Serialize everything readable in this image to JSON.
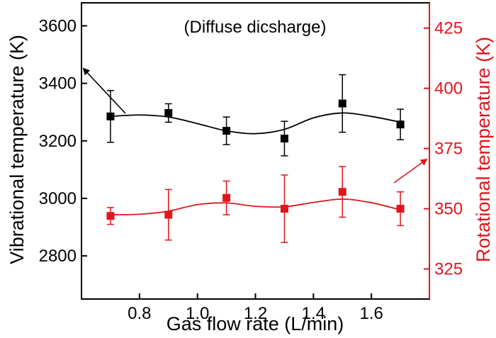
{
  "chart_data": {
    "type": "scatter",
    "annotation": "(Diffuse dicsharge)",
    "xlabel": "Gas flow rate (L/min)",
    "ylabel_left": "Vibrational temperature (K)",
    "ylabel_right": "Rotational temperature (K)",
    "xlim": [
      0.6,
      1.8
    ],
    "ylim_left": [
      2650,
      3680
    ],
    "ylim_right": [
      312.5,
      435.5
    ],
    "xticks": [
      "0.8",
      "1.0",
      "1.2",
      "1.4",
      "1.6"
    ],
    "yticks_left": [
      "2800",
      "3000",
      "3200",
      "3400",
      "3600"
    ],
    "yticks_right": [
      "325",
      "350",
      "375",
      "400",
      "425"
    ],
    "grid": false,
    "colors": {
      "vibrational": "#000000",
      "rotational": "#e0161b"
    },
    "series": [
      {
        "axis": "left",
        "marker": "square",
        "x": [
          0.7,
          0.9,
          1.1,
          1.3,
          1.5,
          1.7
        ],
        "y": [
          3285,
          3297,
          3235,
          3208,
          3330,
          3257
        ],
        "err": [
          90,
          32,
          48,
          60,
          100,
          53
        ]
      },
      {
        "axis": "right",
        "marker": "square",
        "x": [
          0.7,
          0.9,
          1.1,
          1.3,
          1.5,
          1.7
        ],
        "y": [
          347,
          347.5,
          354.5,
          350,
          357,
          350
        ],
        "err": [
          3.5,
          10.5,
          7,
          14,
          10.5,
          7
        ]
      }
    ],
    "fit_curves": [
      {
        "axis": "left",
        "x": [
          0.7,
          0.8,
          0.9,
          1.0,
          1.1,
          1.2,
          1.3,
          1.4,
          1.5,
          1.6,
          1.7
        ],
        "y": [
          3285,
          3290,
          3283,
          3260,
          3235,
          3225,
          3240,
          3280,
          3297,
          3285,
          3265
        ]
      },
      {
        "axis": "right",
        "x": [
          0.7,
          0.8,
          0.9,
          1.0,
          1.1,
          1.2,
          1.3,
          1.4,
          1.5,
          1.6,
          1.7
        ],
        "y": [
          347.5,
          347.7,
          349,
          351.7,
          352.4,
          351,
          350.8,
          352.6,
          354,
          352.5,
          349.5
        ]
      }
    ]
  }
}
